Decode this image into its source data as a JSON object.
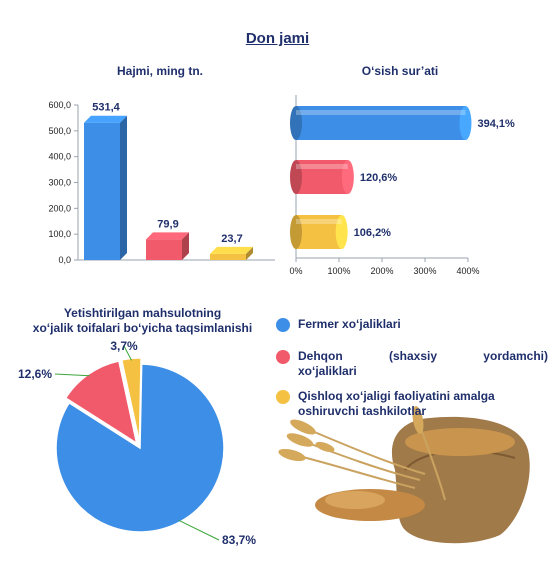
{
  "page_title": "Don jami",
  "chart_data": [
    {
      "type": "bar",
      "title": "Hajmi, ming tn.",
      "categories": [
        "Fermer xo‘jaliklari",
        "Dehqon (shaxsiy yordamchi) xo‘jaliklari",
        "Qishloq xo‘jaligi faoliyatini amalga oshiruvchi tashkilotlar"
      ],
      "values": [
        531.4,
        79.9,
        23.7
      ],
      "value_labels": [
        "531,4",
        "79,9",
        "23,7"
      ],
      "y_ticks": [
        "0,0",
        "100,0",
        "200,0",
        "300,0",
        "400,0",
        "500,0",
        "600,0"
      ],
      "ylim": [
        0,
        600
      ],
      "colors": [
        "#3d8ee6",
        "#f05a6a",
        "#f5c142"
      ]
    },
    {
      "type": "bar",
      "orientation": "horizontal",
      "title": "O‘sish sur’ati",
      "categories": [
        "Fermer xo‘jaliklari",
        "Dehqon (shaxsiy yordamchi) xo‘jaliklari",
        "Qishloq xo‘jaligi faoliyatini amalga oshiruvchi tashkilotlar"
      ],
      "values": [
        394.1,
        120.6,
        106.2
      ],
      "value_labels": [
        "394,1%",
        "120,6%",
        "106,2%"
      ],
      "x_ticks": [
        "0%",
        "100%",
        "200%",
        "300%",
        "400%"
      ],
      "xlim": [
        0,
        400
      ],
      "colors": [
        "#3d8ee6",
        "#f05a6a",
        "#f5c142"
      ]
    },
    {
      "type": "pie",
      "title": "Yetishtirilgan mahsulotning xo‘jalik toifalari bo‘yicha taqsimlanishi",
      "title_lines": [
        "Yetishtirilgan mahsulotning",
        "xo‘jalik toifalari bo‘yicha taqsimlanishi"
      ],
      "categories": [
        "Fermer xo‘jaliklari",
        "Dehqon (shaxsiy yordamchi) xo‘jaliklari",
        "Qishloq xo‘jaligi faoliyatini amalga oshiruvchi tashkilotlar"
      ],
      "values": [
        83.7,
        12.6,
        3.7
      ],
      "value_labels": [
        "83,7%",
        "12,6%",
        "3,7%"
      ],
      "colors": [
        "#3d8ee6",
        "#f05a6a",
        "#f5c142"
      ]
    }
  ],
  "legend": [
    {
      "text": "Fermer xo‘jaliklari",
      "color": "#3d8ee6"
    },
    {
      "line1": "Dehqon (shaxsiy yordamchi)",
      "line2": "xo‘jaliklari",
      "color": "#f05a6a"
    },
    {
      "line1": "Qishloq xo‘jaligi faoliyatini amalga",
      "line2": "oshiruvchi tashkilotlar",
      "color": "#f5c142"
    }
  ],
  "image": {
    "subject": "wheat-grain-sack"
  }
}
